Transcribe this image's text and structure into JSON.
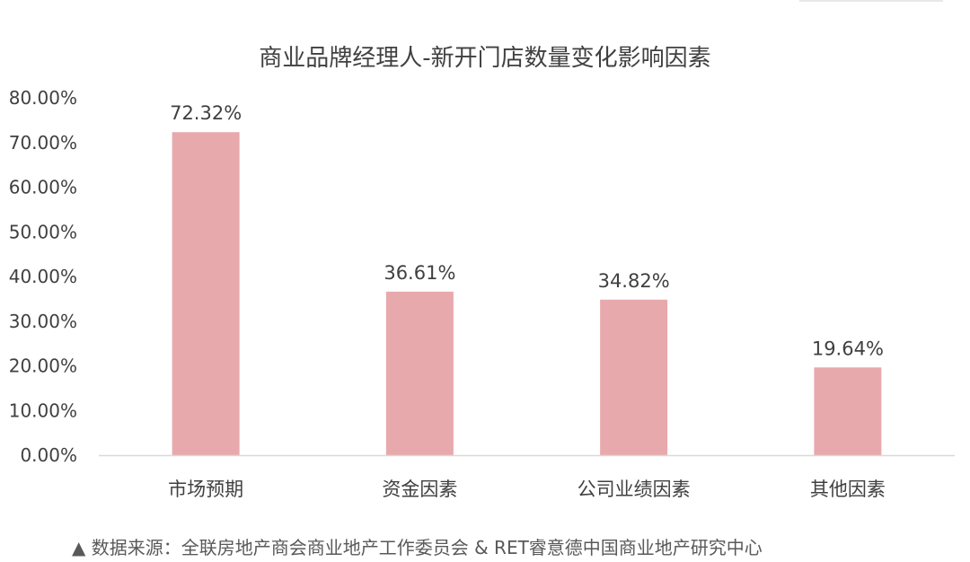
{
  "chart_data": {
    "type": "bar",
    "title": "商业品牌经理人-新开门店数量变化影响因素",
    "categories": [
      "市场预期",
      "资金因素",
      "公司业绩因素",
      "其他因素"
    ],
    "values": [
      72.32,
      36.61,
      34.82,
      19.64
    ],
    "value_labels": [
      "72.32%",
      "36.61%",
      "34.82%",
      "19.64%"
    ],
    "ylim": [
      0,
      80
    ],
    "yticks": [
      0,
      10,
      20,
      30,
      40,
      50,
      60,
      70,
      80
    ],
    "ytick_labels": [
      "0.00%",
      "10.00%",
      "20.00%",
      "30.00%",
      "40.00%",
      "50.00%",
      "60.00%",
      "70.00%",
      "80.00%"
    ],
    "xlabel": "",
    "ylabel": "",
    "grid": false,
    "legend": "none",
    "bar_color": "#e8a9ad",
    "axis_color": "#d9d9d9"
  },
  "source": {
    "text": "▲ 数据来源：全联房地产商会商业地产工作委员会 & RET睿意德中国商业地产研究中心"
  }
}
